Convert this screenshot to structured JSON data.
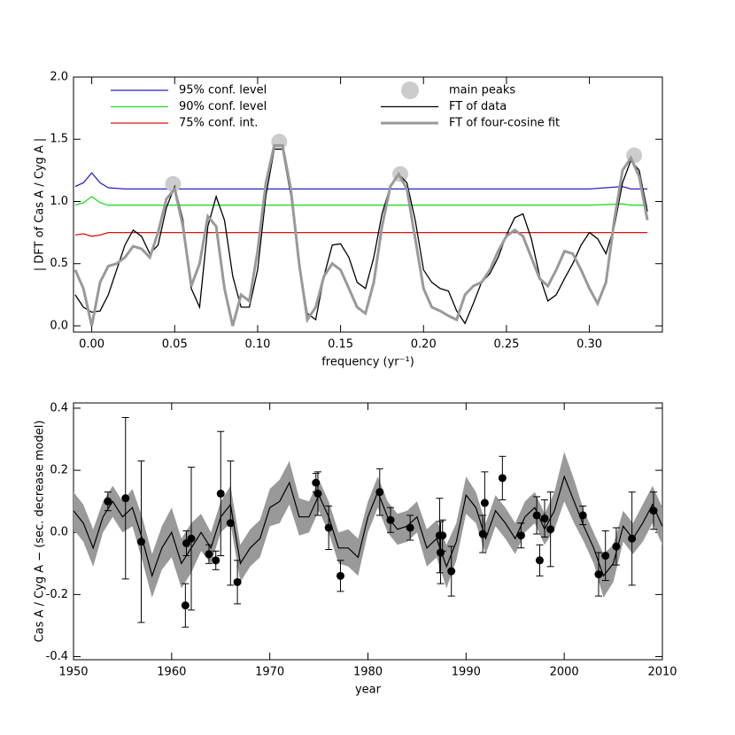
{
  "chart_data": [
    {
      "type": "line",
      "xlabel": "frequency (yr⁻¹)",
      "ylabel": "| DFT of Cas A / Cyg A |",
      "xlim": [
        -0.011,
        0.344
      ],
      "xticks": [
        {
          "value": 0,
          "label": "0.00"
        },
        {
          "value": 0.05,
          "label": "0.05"
        },
        {
          "value": 0.1,
          "label": "0.10"
        },
        {
          "value": 0.15,
          "label": "0.15"
        },
        {
          "value": 0.2,
          "label": "0.20"
        },
        {
          "value": 0.25,
          "label": "0.25"
        },
        {
          "value": 0.3,
          "label": "0.30"
        }
      ],
      "ylim": [
        -0.05,
        2.0
      ],
      "yticks": [
        {
          "value": 0,
          "label": "0.0"
        },
        0.5,
        {
          "value": 1,
          "label": "1.0"
        },
        1.5,
        {
          "value": 2,
          "label": "2.0"
        }
      ],
      "x": [
        -0.01,
        -0.005,
        0,
        0.005,
        0.01,
        0.015,
        0.02,
        0.025,
        0.03,
        0.035,
        0.04,
        0.045,
        0.05,
        0.055,
        0.06,
        0.065,
        0.07,
        0.075,
        0.08,
        0.085,
        0.09,
        0.095,
        0.1,
        0.105,
        0.11,
        0.115,
        0.12,
        0.125,
        0.13,
        0.135,
        0.14,
        0.145,
        0.15,
        0.155,
        0.16,
        0.165,
        0.17,
        0.175,
        0.18,
        0.185,
        0.19,
        0.195,
        0.2,
        0.205,
        0.21,
        0.215,
        0.22,
        0.225,
        0.23,
        0.235,
        0.24,
        0.245,
        0.25,
        0.255,
        0.26,
        0.265,
        0.27,
        0.275,
        0.28,
        0.285,
        0.29,
        0.295,
        0.3,
        0.305,
        0.31,
        0.315,
        0.32,
        0.325,
        0.33,
        0.335
      ],
      "series": [
        {
          "name": "95% conf. level",
          "color": "#2222cc",
          "style": "line",
          "column": "left",
          "x": [
            -0.01,
            -0.005,
            0,
            0.005,
            0.01,
            0.02,
            0.1,
            0.2,
            0.3,
            0.32,
            0.325,
            0.335
          ],
          "values": [
            1.12,
            1.15,
            1.23,
            1.15,
            1.11,
            1.1,
            1.1,
            1.1,
            1.1,
            1.12,
            1.1,
            1.1
          ]
        },
        {
          "name": "90% conf. level",
          "color": "#22dd22",
          "style": "line",
          "column": "left",
          "x": [
            -0.01,
            -0.005,
            0,
            0.005,
            0.01,
            0.02,
            0.1,
            0.2,
            0.3,
            0.32,
            0.325,
            0.335
          ],
          "values": [
            0.97,
            0.99,
            1.04,
            0.99,
            0.97,
            0.97,
            0.97,
            0.97,
            0.97,
            0.98,
            0.97,
            0.97
          ]
        },
        {
          "name": "75% conf. int.",
          "color": "#dd1111",
          "style": "line",
          "column": "left",
          "x": [
            -0.01,
            -0.005,
            0,
            0.005,
            0.01,
            0.02,
            0.1,
            0.2,
            0.3,
            0.32,
            0.325,
            0.335
          ],
          "values": [
            0.73,
            0.74,
            0.72,
            0.73,
            0.75,
            0.75,
            0.75,
            0.75,
            0.75,
            0.75,
            0.75,
            0.75
          ]
        },
        {
          "name": "main peaks",
          "color": "#cccccc",
          "style": "marker",
          "column": "right",
          "x": [
            0.049,
            0.113,
            0.186,
            0.327
          ],
          "values": [
            1.14,
            1.48,
            1.22,
            1.37
          ]
        },
        {
          "name": "FT of data",
          "color": "#000000",
          "style": "line",
          "column": "right",
          "values": [
            0.25,
            0.15,
            0.11,
            0.12,
            0.25,
            0.45,
            0.65,
            0.77,
            0.72,
            0.58,
            0.65,
            0.95,
            1.12,
            0.85,
            0.3,
            0.15,
            0.8,
            1.04,
            0.85,
            0.4,
            0.15,
            0.15,
            0.45,
            1.05,
            1.42,
            1.42,
            1.05,
            0.5,
            0.1,
            0.05,
            0.4,
            0.65,
            0.66,
            0.55,
            0.35,
            0.3,
            0.55,
            0.9,
            1.12,
            1.22,
            1.15,
            0.85,
            0.45,
            0.35,
            0.3,
            0.28,
            0.12,
            0.02,
            0.18,
            0.35,
            0.42,
            0.55,
            0.73,
            0.87,
            0.9,
            0.7,
            0.4,
            0.2,
            0.25,
            0.38,
            0.5,
            0.65,
            0.75,
            0.7,
            0.58,
            0.8,
            1.15,
            1.33,
            1.25,
            0.92
          ]
        },
        {
          "name": "FT of four-cosine fit",
          "color": "#999999",
          "style": "thick",
          "column": "right",
          "values": [
            0.45,
            0.3,
            0,
            0.35,
            0.48,
            0.5,
            0.55,
            0.64,
            0.62,
            0.55,
            0.75,
            1.02,
            1.1,
            0.8,
            0.32,
            0.5,
            0.88,
            0.8,
            0.3,
            0,
            0.25,
            0.2,
            0.6,
            1.15,
            1.45,
            1.45,
            1.1,
            0.5,
            0.05,
            0.15,
            0.4,
            0.5,
            0.45,
            0.3,
            0.15,
            0.1,
            0.35,
            0.8,
            1.12,
            1.22,
            1.1,
            0.7,
            0.3,
            0.15,
            0.12,
            0.08,
            0.05,
            0.25,
            0.32,
            0.35,
            0.45,
            0.6,
            0.72,
            0.77,
            0.72,
            0.55,
            0.38,
            0.32,
            0.45,
            0.6,
            0.58,
            0.45,
            0.3,
            0.18,
            0.35,
            0.85,
            1.25,
            1.35,
            1.2,
            0.85
          ]
        }
      ]
    },
    {
      "type": "errorbar",
      "xlabel": "year",
      "ylabel": "Cas A / Cyg A − (sec. decrease model)",
      "xlim": [
        1950,
        2010
      ],
      "xticks": [
        1950,
        1960,
        1970,
        1980,
        1990,
        2000,
        2010
      ],
      "ylim": [
        -0.41,
        0.417
      ],
      "yticks": [
        0.4,
        0.2,
        {
          "value": 0,
          "label": "0.0"
        },
        -0.2,
        -0.4
      ],
      "model": {
        "color": "#000000",
        "band_color": "#999999",
        "x": [
          1950,
          1951,
          1952,
          1953,
          1954,
          1955,
          1956,
          1957,
          1958,
          1959,
          1960,
          1961,
          1962,
          1963,
          1964,
          1965,
          1966,
          1967,
          1968,
          1969,
          1970,
          1971,
          1972,
          1973,
          1974,
          1975,
          1976,
          1977,
          1978,
          1979,
          1980,
          1981,
          1982,
          1983,
          1984,
          1985,
          1986,
          1987,
          1988,
          1989,
          1990,
          1991,
          1992,
          1993,
          1994,
          1995,
          1996,
          1997,
          1998,
          1999,
          2000,
          2001,
          2002,
          2003,
          2004,
          2005,
          2006,
          2007,
          2008,
          2009,
          2010
        ],
        "values": [
          0.07,
          0.03,
          -0.05,
          0.05,
          0.1,
          0.05,
          0.08,
          -0.02,
          -0.14,
          -0.05,
          0,
          -0.1,
          -0.05,
          0,
          -0.05,
          0.05,
          0.09,
          -0.1,
          -0.05,
          -0.02,
          0.08,
          0.1,
          0.16,
          0.05,
          0.05,
          0.12,
          0.05,
          -0.05,
          -0.05,
          -0.08,
          0.05,
          0.13,
          0.05,
          0.01,
          0.02,
          0.05,
          -0.05,
          -0.02,
          -0.11,
          -0.03,
          0.12,
          0.08,
          -0.02,
          0.07,
          0.03,
          -0.02,
          0.05,
          0.08,
          0.01,
          0.07,
          0.18,
          0.1,
          0.02,
          -0.05,
          -0.14,
          -0.1,
          0.02,
          -0.02,
          0.03,
          0.09,
          0.02
        ],
        "spread": [
          0.06,
          0.06,
          0.06,
          0.05,
          0.05,
          0.05,
          0.06,
          0.07,
          0.07,
          0.07,
          0.08,
          0.08,
          0.08,
          0.06,
          0.05,
          0.05,
          0.06,
          0.06,
          0.06,
          0.06,
          0.06,
          0.07,
          0.07,
          0.06,
          0.05,
          0.05,
          0.05,
          0.05,
          0.06,
          0.06,
          0.05,
          0.05,
          0.05,
          0.05,
          0.05,
          0.05,
          0.06,
          0.06,
          0.07,
          0.06,
          0.06,
          0.05,
          0.05,
          0.05,
          0.05,
          0.05,
          0.05,
          0.05,
          0.05,
          0.06,
          0.08,
          0.07,
          0.05,
          0.05,
          0.07,
          0.06,
          0.05,
          0.05,
          0.06,
          0.06,
          0.06
        ]
      },
      "points": {
        "color": "#000000",
        "x": [
          1953.5,
          1955.3,
          1956.9,
          1961.4,
          1961.5,
          1962,
          1963.8,
          1964.5,
          1965,
          1966,
          1966.7,
          1974.7,
          1974.9,
          1976,
          1977.2,
          1981.2,
          1982.3,
          1984.3,
          1987.3,
          1987.4,
          1987.6,
          1988.5,
          1991.7,
          1991.9,
          1993.7,
          1995.6,
          1997.2,
          1997.5,
          1998,
          1998.6,
          2001.9,
          2003.5,
          2004.2,
          2005.3,
          2006.9,
          2009.1
        ],
        "values": [
          0.1,
          0.11,
          -0.03,
          -0.235,
          -0.035,
          -0.02,
          -0.07,
          -0.09,
          0.125,
          0.03,
          -0.16,
          0.16,
          0.125,
          0.015,
          -0.14,
          0.13,
          0.04,
          0.015,
          -0.01,
          -0.065,
          -0.01,
          -0.125,
          -0.005,
          0.095,
          0.175,
          -0.01,
          0.055,
          -0.09,
          0.045,
          0.01,
          0.055,
          -0.135,
          -0.075,
          -0.045,
          -0.02,
          0.07
        ],
        "errors": [
          0.03,
          0.26,
          0.26,
          0.07,
          0.04,
          0.23,
          0.03,
          0.03,
          0.2,
          0.2,
          0.07,
          0.03,
          0.07,
          0.07,
          0.05,
          0.075,
          0.04,
          0.04,
          0.12,
          0.1,
          0.05,
          0.08,
          0.06,
          0.1,
          0.07,
          0.04,
          0.06,
          0.05,
          0.06,
          0.12,
          0.03,
          0.07,
          0.08,
          0.06,
          0.15,
          0.06
        ]
      }
    }
  ]
}
